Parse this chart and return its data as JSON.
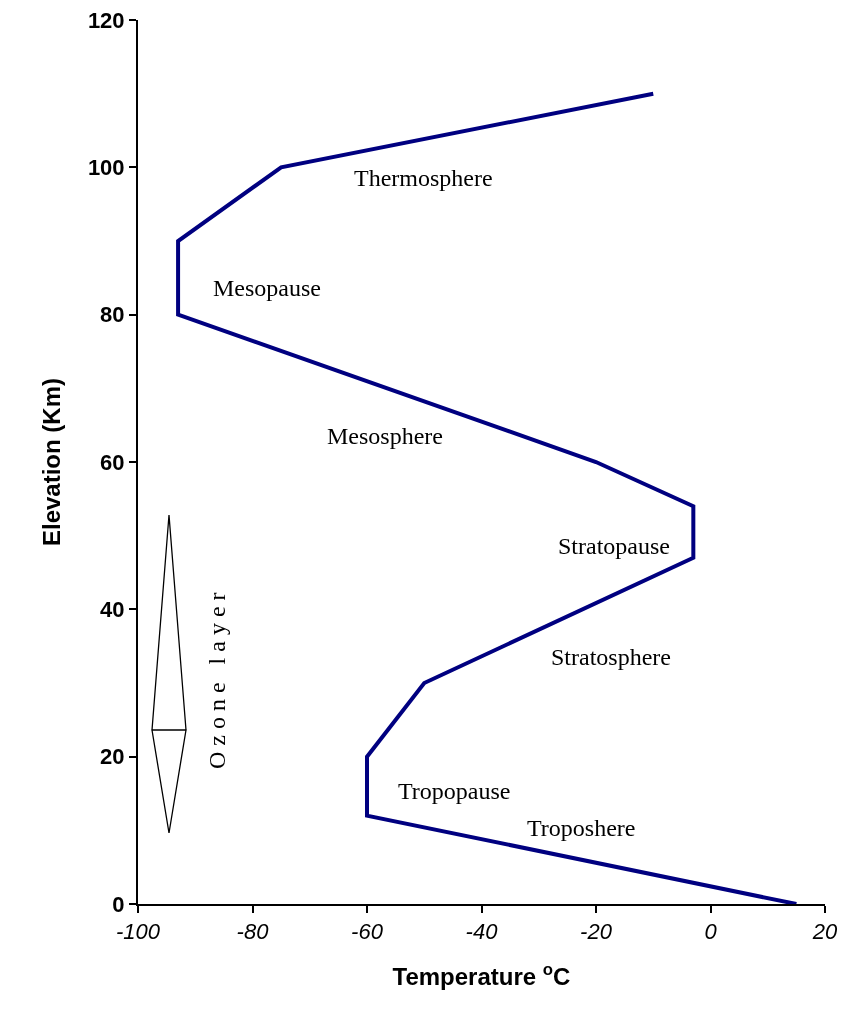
{
  "chart_data": {
    "type": "line",
    "xlabel": "Temperature $^{o}$C",
    "ylabel": "Elevation (Km)",
    "x": [
      15,
      -60,
      -60,
      -50,
      -3,
      -3,
      -20,
      -93,
      -93,
      -75,
      -10
    ],
    "series": [
      {
        "color": "#000080",
        "values": [
          0,
          12,
          20,
          30,
          47,
          54,
          60,
          80,
          90,
          100,
          110
        ]
      }
    ],
    "xlim": [
      -100,
      20
    ],
    "xticks": [
      -100,
      -80,
      -60,
      -40,
      -20,
      0,
      20
    ],
    "ylim": [
      0,
      120
    ],
    "yticks": [
      0,
      20,
      40,
      60,
      80,
      100,
      120
    ],
    "grid": false,
    "marker": "none",
    "line_style": "solid",
    "annotations": [
      "Thermosphere",
      "Mesopause",
      "Mesosphere",
      "Stratopause",
      "Stratosphere",
      "Tropopause",
      "Troposhere",
      "O z o n e   l a y e r"
    ]
  }
}
